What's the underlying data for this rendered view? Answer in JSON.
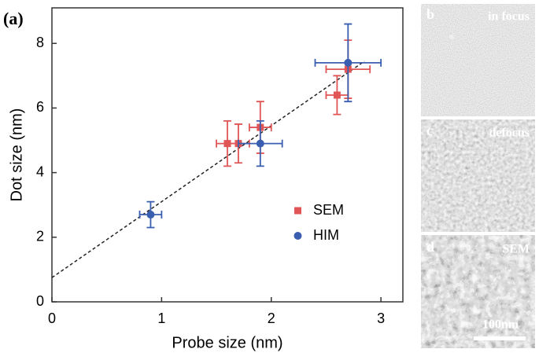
{
  "chart_data": {
    "type": "scatter",
    "panel_label": "(a)",
    "x_label": "Probe size (nm)",
    "y_label": "Dot size (nm)",
    "xlim": [
      0,
      3.2
    ],
    "ylim": [
      0,
      9.1
    ],
    "xticks": [
      0,
      1,
      2,
      3
    ],
    "yticks": [
      0,
      2,
      4,
      6,
      8
    ],
    "series": [
      {
        "name": "SEM",
        "color": "#e05555",
        "marker": "square",
        "x": [
          1.6,
          1.7,
          1.9,
          2.6,
          2.7
        ],
        "values": [
          4.9,
          4.9,
          5.4,
          6.4,
          7.2
        ],
        "xerr": [
          0.1,
          0.1,
          0.1,
          0.1,
          0.2
        ],
        "yerr": [
          0.7,
          0.6,
          0.8,
          0.6,
          0.9
        ]
      },
      {
        "name": "HIM",
        "color": "#3a5fb0",
        "marker": "circle",
        "x": [
          0.9,
          1.9,
          2.7
        ],
        "values": [
          2.7,
          4.9,
          7.4
        ],
        "xerr": [
          0.1,
          0.2,
          0.3
        ],
        "yerr": [
          0.4,
          0.7,
          1.2
        ]
      }
    ],
    "fit": {
      "x": [
        0,
        2.85
      ],
      "values": [
        0.75,
        7.45
      ]
    }
  },
  "images": [
    {
      "label": "b",
      "caption": "in focus"
    },
    {
      "label": "c",
      "caption": "defocus"
    },
    {
      "label": "d",
      "caption": "SEM",
      "scale_bar": "100nm"
    }
  ]
}
